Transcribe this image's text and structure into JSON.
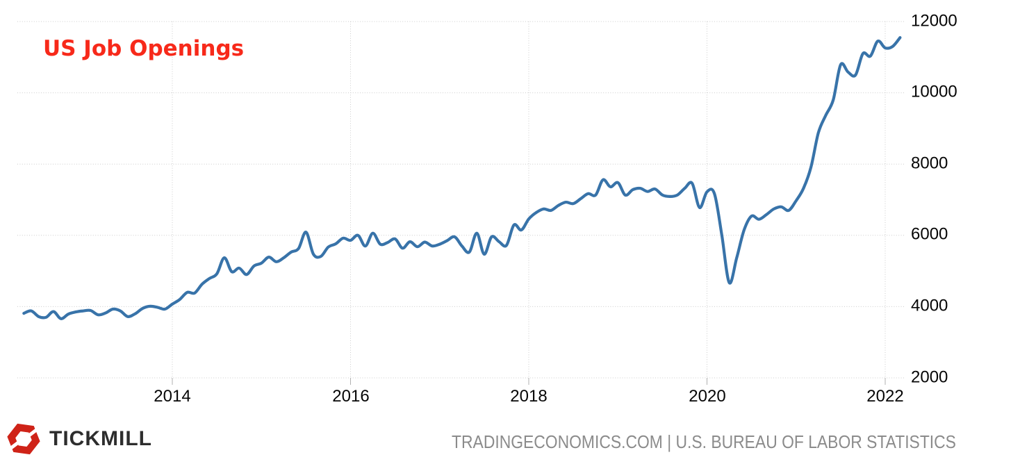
{
  "title": "US Job Openings",
  "footer": {
    "brand": "TICKMILL",
    "source": "TRADINGECONOMICS.COM | U.S. BUREAU OF LABOR STATISTICS"
  },
  "colors": {
    "line": "#3873a9",
    "title": "#f7291a",
    "grid": "#cccccc",
    "axis_tick": "#b0b0b0",
    "brand_red": "#cf2318",
    "brand_text": "#2d2d2d",
    "source_text": "#8b8b8b"
  },
  "chart_data": {
    "type": "line",
    "title": "US Job Openings",
    "unit": "thousands",
    "frequency": "monthly",
    "start": "2012-05",
    "end": "2022-03",
    "grid": "dotted",
    "legend": "none",
    "ylim": [
      2000,
      12000
    ],
    "y_ticks": [
      2000,
      4000,
      6000,
      8000,
      10000,
      12000
    ],
    "x_ticks": [
      "2014",
      "2016",
      "2018",
      "2020",
      "2022"
    ],
    "x_tick_years": [
      2014,
      2016,
      2018,
      2020,
      2022
    ],
    "series": [
      {
        "name": "US Job Openings",
        "values": [
          3810,
          3880,
          3720,
          3700,
          3860,
          3660,
          3790,
          3850,
          3880,
          3890,
          3770,
          3820,
          3930,
          3880,
          3720,
          3800,
          3950,
          4010,
          3980,
          3930,
          4070,
          4200,
          4400,
          4380,
          4630,
          4790,
          4920,
          5370,
          4980,
          5080,
          4900,
          5140,
          5220,
          5390,
          5260,
          5370,
          5530,
          5630,
          6090,
          5470,
          5410,
          5670,
          5760,
          5920,
          5860,
          6000,
          5700,
          6060,
          5750,
          5800,
          5900,
          5640,
          5820,
          5680,
          5810,
          5700,
          5750,
          5850,
          5960,
          5700,
          5530,
          6060,
          5470,
          5960,
          5820,
          5720,
          6290,
          6150,
          6460,
          6640,
          6740,
          6700,
          6840,
          6930,
          6890,
          7030,
          7170,
          7130,
          7560,
          7360,
          7480,
          7130,
          7280,
          7320,
          7230,
          7300,
          7130,
          7090,
          7130,
          7320,
          7460,
          6780,
          7220,
          7170,
          6000,
          4670,
          5370,
          6150,
          6540,
          6450,
          6580,
          6740,
          6800,
          6700,
          6970,
          7320,
          7910,
          8880,
          9370,
          9800,
          10790,
          10580,
          10500,
          11100,
          11030,
          11450,
          11260,
          11300,
          11550
        ]
      }
    ]
  }
}
